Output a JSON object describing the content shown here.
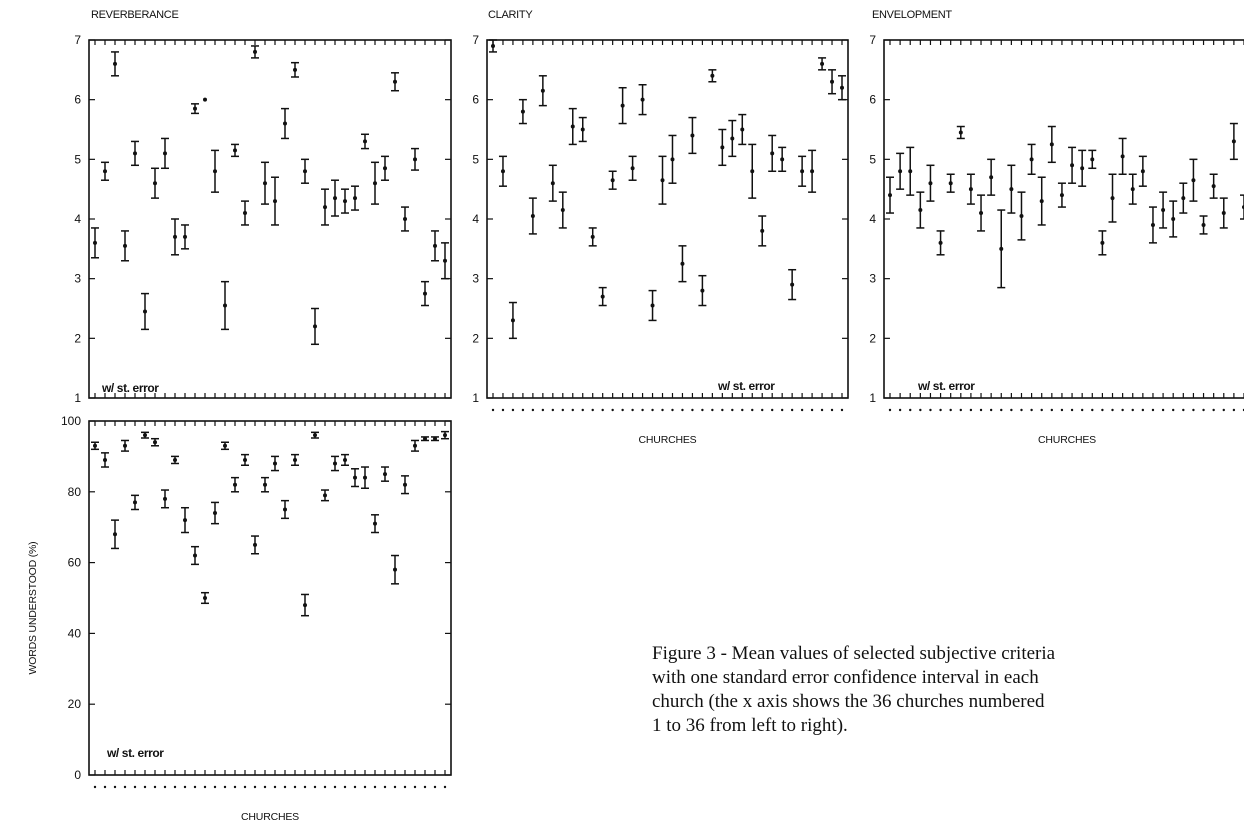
{
  "chart_data": [
    {
      "type": "scatter",
      "title": "REVERBERANCE",
      "xlabel": "",
      "ylabel": "",
      "x_tick_labels": "unlabeled (36 churches)",
      "ylim": [
        1,
        7
      ],
      "yticks": [
        1,
        2,
        3,
        4,
        5,
        6,
        7
      ],
      "annotation": "w/ st. error",
      "error_bars": true,
      "x": [
        1,
        2,
        3,
        4,
        5,
        6,
        7,
        8,
        9,
        10,
        11,
        12,
        13,
        14,
        15,
        16,
        17,
        18,
        19,
        20,
        21,
        22,
        23,
        24,
        25,
        26,
        27,
        28,
        29,
        30,
        31,
        32,
        33,
        34,
        35,
        36
      ],
      "y": [
        3.6,
        4.8,
        6.6,
        3.55,
        5.1,
        2.45,
        4.6,
        5.1,
        3.7,
        3.7,
        5.85,
        6.0,
        4.8,
        2.55,
        5.15,
        4.1,
        6.8,
        4.6,
        4.3,
        5.6,
        6.5,
        4.8,
        2.2,
        4.2,
        4.35,
        4.3,
        4.35,
        5.3,
        4.6,
        4.85,
        6.3,
        4.0,
        5.0,
        2.75,
        3.55,
        3.3
      ],
      "err": [
        0.25,
        0.15,
        0.2,
        0.25,
        0.2,
        0.3,
        0.25,
        0.25,
        0.3,
        0.2,
        0.08,
        0.0,
        0.35,
        0.4,
        0.1,
        0.2,
        0.1,
        0.35,
        0.4,
        0.25,
        0.12,
        0.2,
        0.3,
        0.3,
        0.3,
        0.2,
        0.2,
        0.12,
        0.35,
        0.2,
        0.15,
        0.2,
        0.18,
        0.2,
        0.25,
        0.3
      ]
    },
    {
      "type": "scatter",
      "title": "CLARITY",
      "xlabel": "CHURCHES",
      "ylabel": "",
      "ylim": [
        1,
        7
      ],
      "yticks": [
        1,
        2,
        3,
        4,
        5,
        6,
        7
      ],
      "annotation": "w/ st. error",
      "error_bars": true,
      "x": [
        1,
        2,
        3,
        4,
        5,
        6,
        7,
        8,
        9,
        10,
        11,
        12,
        13,
        14,
        15,
        16,
        17,
        18,
        19,
        20,
        21,
        22,
        23,
        24,
        25,
        26,
        27,
        28,
        29,
        30,
        31,
        32,
        33,
        34,
        35,
        36
      ],
      "y": [
        6.9,
        4.8,
        2.3,
        5.8,
        4.05,
        6.15,
        4.6,
        4.15,
        5.55,
        5.5,
        3.7,
        2.7,
        4.65,
        5.9,
        4.85,
        6.0,
        2.55,
        4.65,
        5.0,
        3.25,
        5.4,
        2.8,
        6.4,
        5.2,
        5.35,
        5.5,
        4.8,
        3.8,
        5.1,
        5.0,
        2.9,
        4.8,
        4.8,
        6.6,
        6.3,
        6.2
      ],
      "err": [
        0.1,
        0.25,
        0.3,
        0.2,
        0.3,
        0.25,
        0.3,
        0.3,
        0.3,
        0.2,
        0.15,
        0.15,
        0.15,
        0.3,
        0.2,
        0.25,
        0.25,
        0.4,
        0.4,
        0.3,
        0.3,
        0.25,
        0.1,
        0.3,
        0.3,
        0.25,
        0.45,
        0.25,
        0.3,
        0.2,
        0.25,
        0.25,
        0.35,
        0.1,
        0.2,
        0.2
      ]
    },
    {
      "type": "scatter",
      "title": "ENVELOPMENT",
      "xlabel": "CHURCHES",
      "ylabel": "",
      "ylim": [
        1,
        7
      ],
      "yticks": [
        1,
        2,
        3,
        4,
        5,
        6,
        7
      ],
      "annotation": "w/ st. error",
      "error_bars": true,
      "x": [
        1,
        2,
        3,
        4,
        5,
        6,
        7,
        8,
        9,
        10,
        11,
        12,
        13,
        14,
        15,
        16,
        17,
        18,
        19,
        20,
        21,
        22,
        23,
        24,
        25,
        26,
        27,
        28,
        29,
        30,
        31,
        32,
        33,
        34,
        35,
        36
      ],
      "y": [
        4.4,
        4.8,
        4.8,
        4.15,
        4.6,
        3.6,
        4.6,
        5.45,
        4.5,
        4.1,
        4.7,
        3.5,
        4.5,
        4.05,
        5.0,
        4.3,
        5.25,
        4.4,
        4.9,
        4.85,
        5.0,
        3.6,
        4.35,
        5.05,
        4.5,
        4.8,
        3.9,
        4.15,
        4.0,
        4.35,
        4.65,
        3.9,
        4.55,
        4.1,
        5.3,
        4.2
      ],
      "err": [
        0.3,
        0.3,
        0.4,
        0.3,
        0.3,
        0.2,
        0.15,
        0.1,
        0.25,
        0.3,
        0.3,
        0.65,
        0.4,
        0.4,
        0.25,
        0.4,
        0.3,
        0.2,
        0.3,
        0.3,
        0.15,
        0.2,
        0.4,
        0.3,
        0.25,
        0.25,
        0.3,
        0.3,
        0.3,
        0.25,
        0.35,
        0.15,
        0.2,
        0.25,
        0.3,
        0.2
      ]
    },
    {
      "type": "scatter",
      "title": "",
      "xlabel": "CHURCHES",
      "ylabel": "WORDS UNDERSTOOD (%)",
      "ylim": [
        0,
        100
      ],
      "yticks": [
        0,
        20,
        40,
        60,
        80,
        100
      ],
      "annotation": "w/ st. error",
      "error_bars": true,
      "x": [
        1,
        2,
        3,
        4,
        5,
        6,
        7,
        8,
        9,
        10,
        11,
        12,
        13,
        14,
        15,
        16,
        17,
        18,
        19,
        20,
        21,
        22,
        23,
        24,
        25,
        26,
        27,
        28,
        29,
        30,
        31,
        32,
        33,
        34,
        35,
        36
      ],
      "y": [
        93,
        89,
        68,
        93,
        77,
        96,
        94,
        78,
        89,
        72,
        62,
        50,
        74,
        93,
        82,
        89,
        65,
        82,
        88,
        75,
        89,
        48,
        96,
        79,
        88,
        89,
        84,
        84,
        71,
        85,
        58,
        82,
        93,
        95,
        95,
        96
      ],
      "err": [
        1,
        2,
        4,
        1.5,
        2,
        0.8,
        1,
        2.5,
        1,
        3.5,
        2.5,
        1.5,
        3,
        1,
        2,
        1.5,
        2.5,
        2,
        2,
        2.5,
        1.5,
        3,
        0.8,
        1.5,
        2,
        1.5,
        2.5,
        3,
        2.5,
        2,
        4,
        2.5,
        1.5,
        0.5,
        0.5,
        1
      ]
    }
  ],
  "caption": {
    "lines": [
      "Figure 3 - Mean values of selected subjective criteria",
      "with one standard error confidence interval in each",
      "church (the x axis shows the 36 churches numbered",
      "1 to 36 from left to right)."
    ]
  }
}
